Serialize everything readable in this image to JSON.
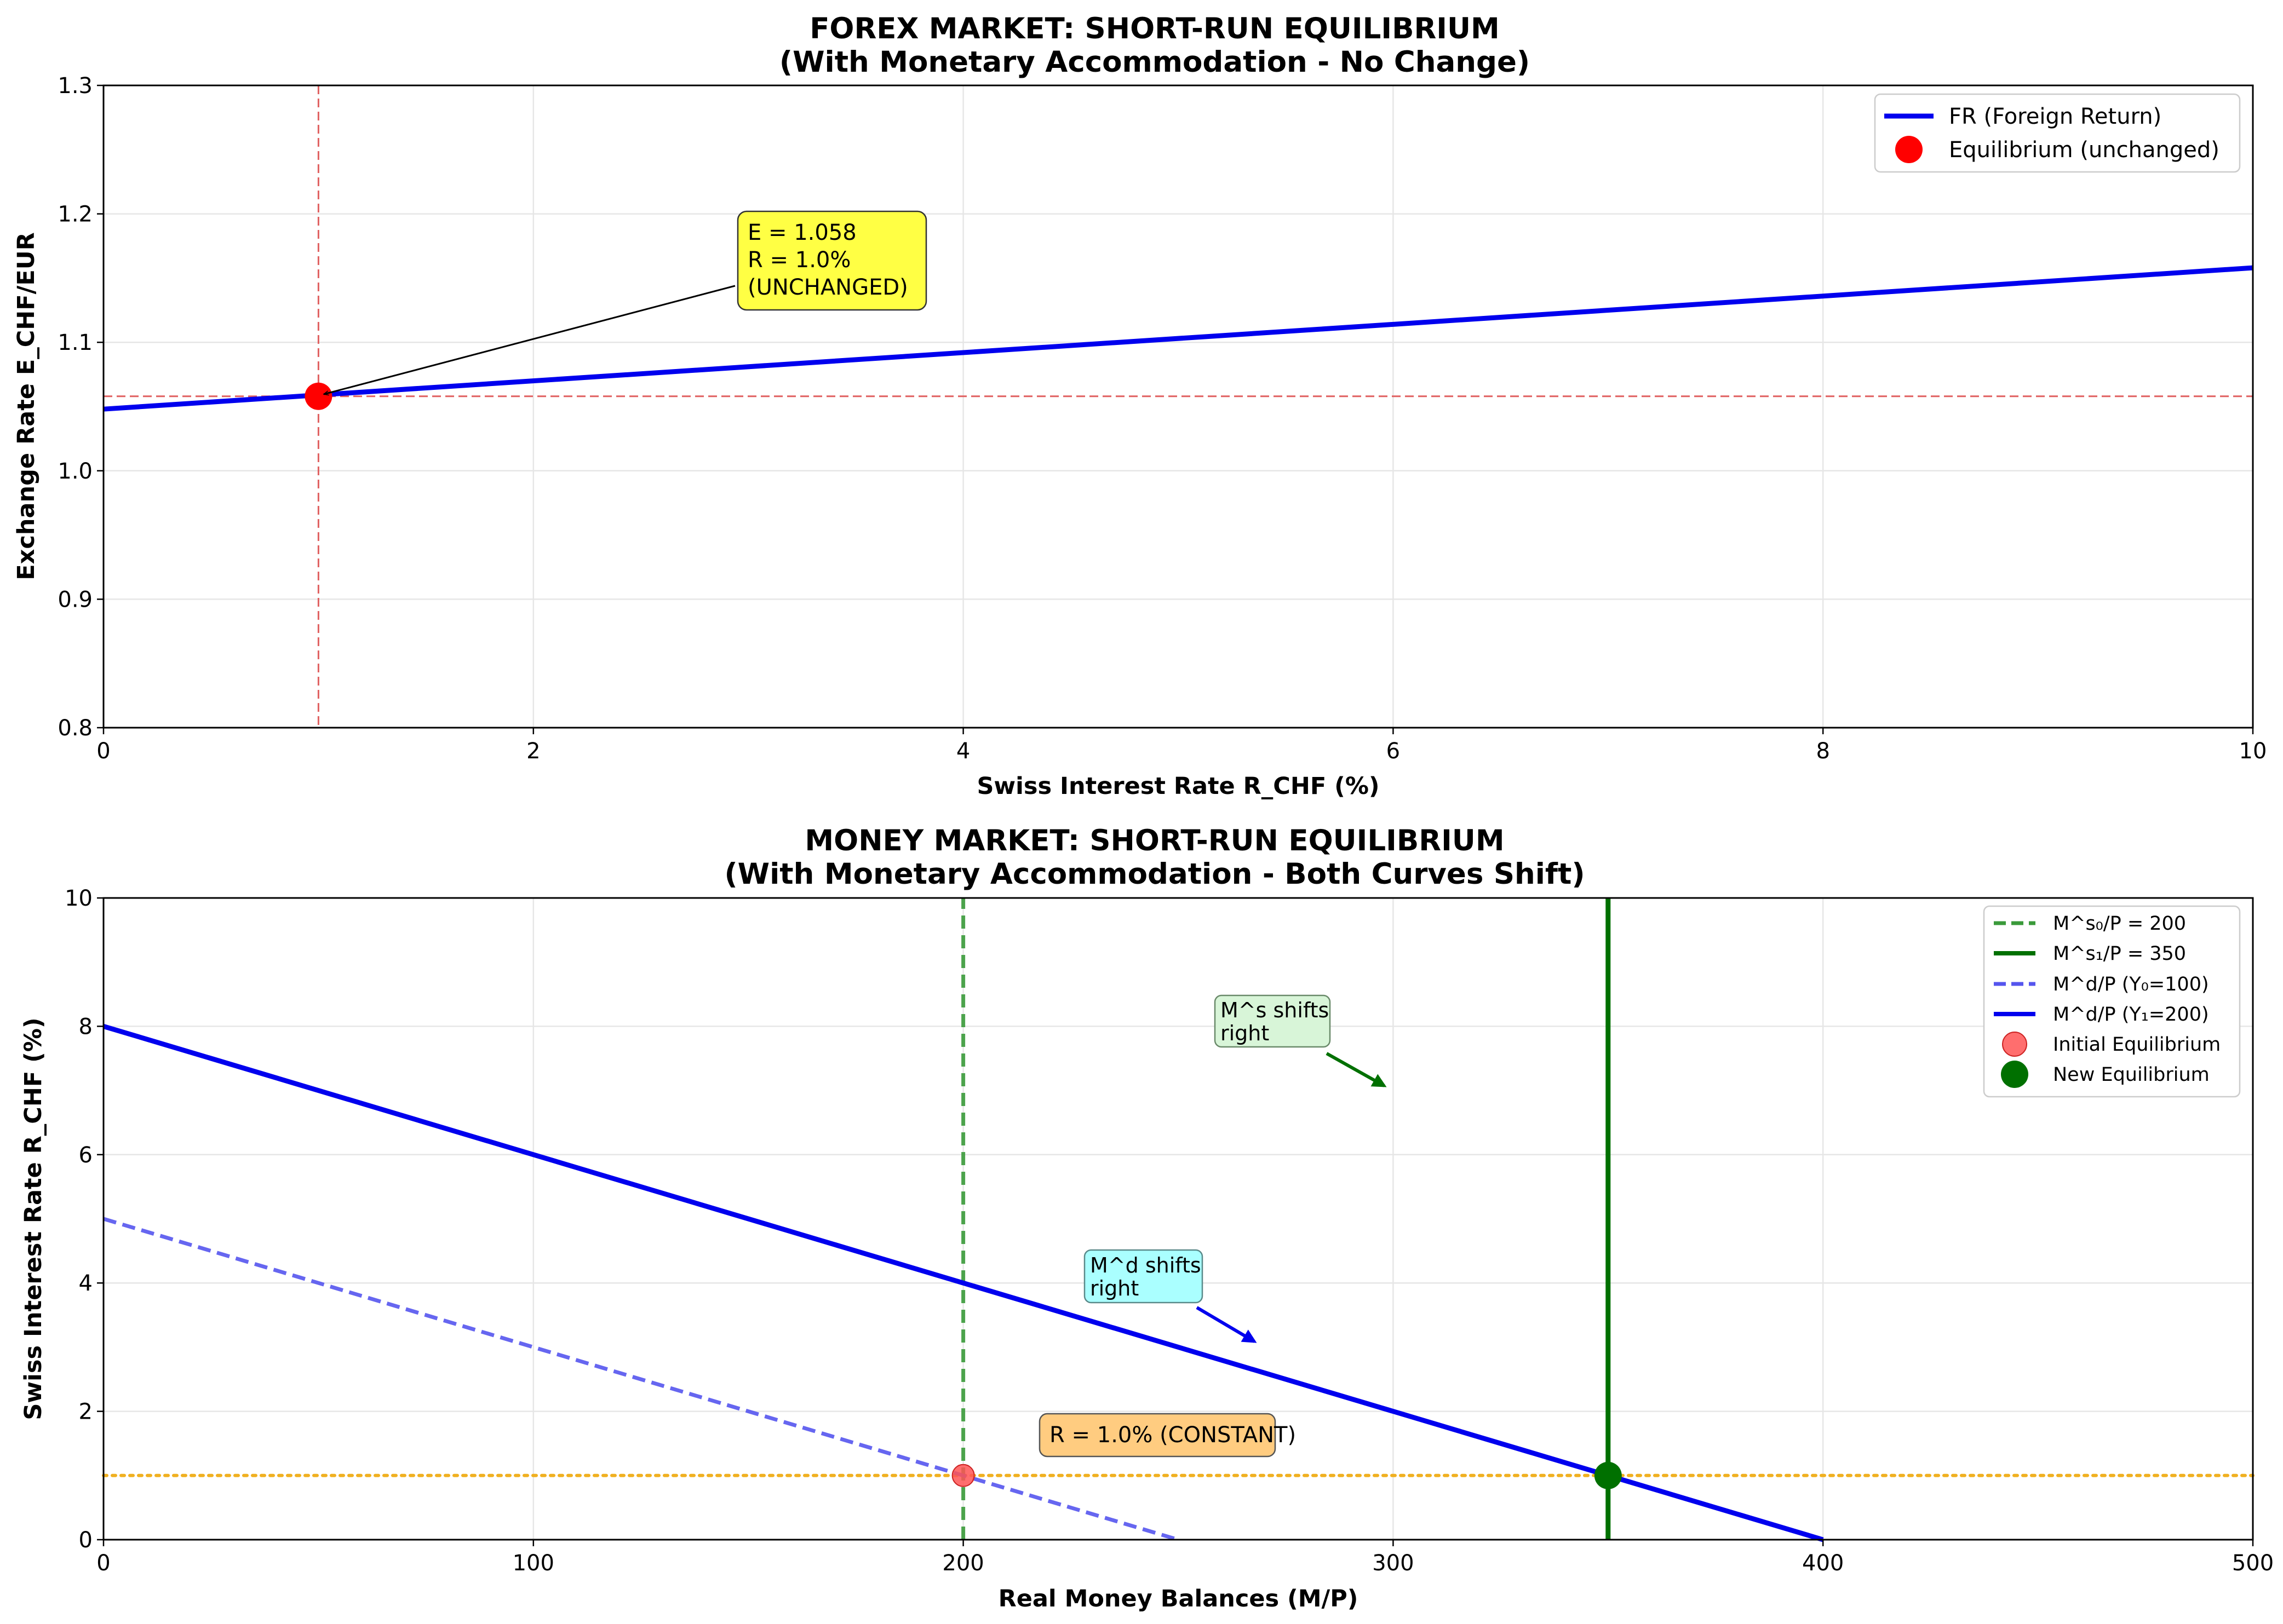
{
  "chart_data": [
    {
      "type": "line",
      "title": "FOREX MARKET: SHORT-RUN EQUILIBRIUM",
      "subtitle": "(With Monetary Accommodation - No Change)",
      "xlabel": "Swiss Interest Rate R_CHF (%)",
      "ylabel": "Exchange Rate E_CHF/EUR",
      "xlim": [
        0,
        10
      ],
      "ylim": [
        0.8,
        1.3
      ],
      "xticks": [
        "0",
        "2",
        "4",
        "6",
        "8",
        "10"
      ],
      "yticks": [
        "0.8",
        "0.9",
        "1.0",
        "1.1",
        "1.2",
        "1.3"
      ],
      "grid": true,
      "legend_position": "top-right",
      "series": [
        {
          "name": "FR (Foreign Return)",
          "color": "#0000ee",
          "style": "solid",
          "x": [
            0,
            10
          ],
          "y": [
            1.048,
            1.158
          ]
        }
      ],
      "points": [
        {
          "name": "Equilibrium (unchanged)",
          "color": "#ff0000",
          "x": 1.0,
          "y": 1.058
        }
      ],
      "reference_lines": [
        {
          "orientation": "vertical",
          "value": 1.0,
          "color": "#e06060",
          "style": "dashed"
        },
        {
          "orientation": "horizontal",
          "value": 1.058,
          "color": "#e06060",
          "style": "dashed"
        }
      ],
      "annotations": [
        {
          "lines": [
            "E = 1.058",
            "R = 1.0%",
            "(UNCHANGED)"
          ],
          "color": "#ffff44",
          "text_x": 3.0,
          "text_y": 1.17,
          "arrow_to": [
            1.0,
            1.058
          ]
        }
      ]
    },
    {
      "type": "line",
      "title": "MONEY MARKET: SHORT-RUN EQUILIBRIUM",
      "subtitle": "(With Monetary Accommodation - Both Curves Shift)",
      "xlabel": "Real Money Balances (M/P)",
      "ylabel": "Swiss Interest Rate R_CHF (%)",
      "xlim": [
        0,
        500
      ],
      "ylim": [
        0,
        10
      ],
      "xticks": [
        "0",
        "100",
        "200",
        "300",
        "400",
        "500"
      ],
      "yticks": [
        "0",
        "2",
        "4",
        "6",
        "8",
        "10"
      ],
      "grid": true,
      "legend_position": "top-right",
      "series": [
        {
          "name": "M^s₀/P = 200",
          "color": "#3a9a3a",
          "style": "dashed",
          "x": [
            200,
            200
          ],
          "y": [
            0,
            10
          ]
        },
        {
          "name": "M^s₁/P = 350",
          "color": "#007000",
          "style": "solid",
          "x": [
            350,
            350
          ],
          "y": [
            0,
            10
          ]
        },
        {
          "name": "M^d/P (Y₀=100)",
          "color": "#5555ee",
          "style": "dashed",
          "x": [
            0,
            250
          ],
          "y": [
            5,
            0
          ]
        },
        {
          "name": "M^d/P (Y₁=200)",
          "color": "#0000ee",
          "style": "solid",
          "x": [
            0,
            400
          ],
          "y": [
            8,
            0
          ]
        }
      ],
      "points": [
        {
          "name": "Initial Equilibrium",
          "color": "#ff5555",
          "x": 200,
          "y": 1.0
        },
        {
          "name": "New Equilibrium",
          "color": "#007000",
          "x": 350,
          "y": 1.0
        }
      ],
      "reference_lines": [
        {
          "orientation": "horizontal",
          "value": 1.0,
          "color": "#f0b020",
          "style": "dotted"
        }
      ],
      "annotations": [
        {
          "lines": [
            "M^s shifts",
            "right"
          ],
          "color": "#d8f5d8",
          "text_x": 260,
          "text_y": 8.0,
          "arrow_from": [
            285,
            7.75
          ],
          "arrow_to": [
            300,
            7.0
          ],
          "arrow_color": "#007000"
        },
        {
          "lines": [
            "M^d shifts",
            "right"
          ],
          "color": "#aaffff",
          "text_x": 229,
          "text_y": 4.0,
          "arrow_from": [
            255,
            3.6
          ],
          "arrow_to": [
            270,
            3.0
          ],
          "arrow_color": "#0000ee"
        },
        {
          "lines": [
            "R = 1.0% (CONSTANT)"
          ],
          "color": "#ffcc80",
          "text_x": 220,
          "text_y": 1.6
        }
      ]
    }
  ]
}
